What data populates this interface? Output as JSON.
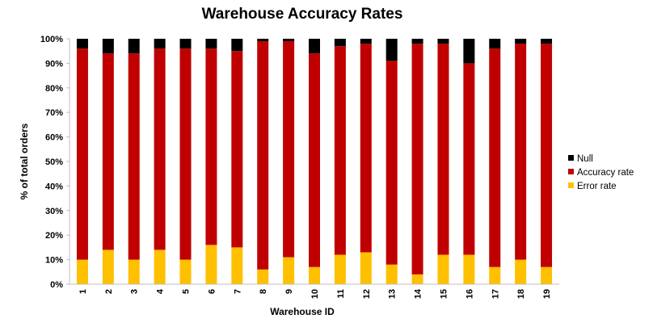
{
  "chart_data": {
    "type": "bar",
    "stacked": true,
    "title": "Warehouse Accuracy Rates",
    "xlabel": "Warehouse ID",
    "ylabel": "% of total orders",
    "ylim": [
      0,
      100
    ],
    "y_ticks": [
      "0%",
      "10%",
      "20%",
      "30%",
      "40%",
      "50%",
      "60%",
      "70%",
      "80%",
      "90%",
      "100%"
    ],
    "categories": [
      "1",
      "2",
      "3",
      "4",
      "5",
      "6",
      "7",
      "8",
      "9",
      "10",
      "11",
      "12",
      "13",
      "14",
      "15",
      "16",
      "17",
      "18",
      "19"
    ],
    "series": [
      {
        "name": "Error rate",
        "color": "#FFC000",
        "values": [
          10,
          14,
          10,
          14,
          10,
          16,
          15,
          6,
          11,
          7,
          12,
          13,
          8,
          4,
          12,
          12,
          7,
          10,
          7
        ]
      },
      {
        "name": "Accuracy rate",
        "color": "#C00000",
        "values": [
          86,
          80,
          84,
          82,
          86,
          80,
          80,
          93,
          88,
          87,
          85,
          85,
          83,
          94,
          86,
          78,
          89,
          88,
          91
        ]
      },
      {
        "name": "Null",
        "color": "#000000",
        "values": [
          4,
          6,
          6,
          4,
          4,
          4,
          5,
          1,
          1,
          6,
          3,
          2,
          9,
          2,
          2,
          10,
          4,
          2,
          2
        ]
      }
    ],
    "legend": {
      "position": "right",
      "order": [
        "Null",
        "Accuracy rate",
        "Error rate"
      ]
    },
    "grid": false
  }
}
